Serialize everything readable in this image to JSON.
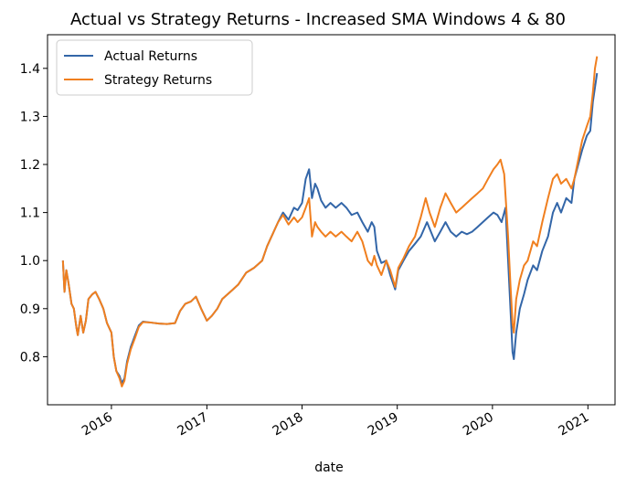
{
  "chart_data": {
    "type": "line",
    "title": "Actual vs Strategy Returns - Increased SMA Windows 4 & 80",
    "xlabel": "date",
    "ylabel": "",
    "x_range": [
      "2015-05-01",
      "2021-04-15"
    ],
    "ylim": [
      0.7,
      1.47
    ],
    "x_ticks": [
      {
        "date": "2016-01-01",
        "label": "2016"
      },
      {
        "date": "2017-01-01",
        "label": "2017"
      },
      {
        "date": "2018-01-01",
        "label": "2018"
      },
      {
        "date": "2019-01-01",
        "label": "2019"
      },
      {
        "date": "2020-01-01",
        "label": "2020"
      },
      {
        "date": "2021-01-01",
        "label": "2021"
      }
    ],
    "y_ticks": [
      {
        "value": 0.8,
        "label": "0.8"
      },
      {
        "value": 0.9,
        "label": "0.9"
      },
      {
        "value": 1.0,
        "label": "1.0"
      },
      {
        "value": 1.1,
        "label": "1.1"
      },
      {
        "value": 1.2,
        "label": "1.2"
      },
      {
        "value": 1.3,
        "label": "1.3"
      },
      {
        "value": 1.4,
        "label": "1.4"
      }
    ],
    "grid": false,
    "legend_position": "upper-left",
    "series": [
      {
        "name": "Actual Returns",
        "color": "#3366a8",
        "points": [
          [
            "2015-06-29",
            1.0
          ],
          [
            "2015-07-05",
            0.935
          ],
          [
            "2015-07-12",
            0.98
          ],
          [
            "2015-07-20",
            0.955
          ],
          [
            "2015-08-01",
            0.91
          ],
          [
            "2015-08-10",
            0.9
          ],
          [
            "2015-08-20",
            0.86
          ],
          [
            "2015-08-25",
            0.845
          ],
          [
            "2015-09-05",
            0.885
          ],
          [
            "2015-09-15",
            0.85
          ],
          [
            "2015-09-25",
            0.875
          ],
          [
            "2015-10-05",
            0.92
          ],
          [
            "2015-10-20",
            0.93
          ],
          [
            "2015-11-01",
            0.935
          ],
          [
            "2015-11-15",
            0.92
          ],
          [
            "2015-12-01",
            0.9
          ],
          [
            "2015-12-15",
            0.87
          ],
          [
            "2016-01-01",
            0.85
          ],
          [
            "2016-01-10",
            0.8
          ],
          [
            "2016-01-20",
            0.77
          ],
          [
            "2016-02-01",
            0.76
          ],
          [
            "2016-02-10",
            0.745
          ],
          [
            "2016-02-20",
            0.755
          ],
          [
            "2016-03-01",
            0.79
          ],
          [
            "2016-03-15",
            0.82
          ],
          [
            "2016-04-01",
            0.845
          ],
          [
            "2016-04-15",
            0.865
          ],
          [
            "2016-05-01",
            0.873
          ],
          [
            "2016-06-01",
            0.871
          ],
          [
            "2016-07-01",
            0.869
          ],
          [
            "2016-08-01",
            0.868
          ],
          [
            "2016-09-01",
            0.87
          ],
          [
            "2016-09-20",
            0.895
          ],
          [
            "2016-10-10",
            0.91
          ],
          [
            "2016-11-01",
            0.915
          ],
          [
            "2016-11-20",
            0.925
          ],
          [
            "2016-12-10",
            0.9
          ],
          [
            "2017-01-01",
            0.875
          ],
          [
            "2017-01-20",
            0.885
          ],
          [
            "2017-02-10",
            0.9
          ],
          [
            "2017-03-01",
            0.92
          ],
          [
            "2017-04-01",
            0.935
          ],
          [
            "2017-05-01",
            0.95
          ],
          [
            "2017-06-01",
            0.975
          ],
          [
            "2017-07-01",
            0.985
          ],
          [
            "2017-08-01",
            1.0
          ],
          [
            "2017-08-20",
            1.03
          ],
          [
            "2017-09-10",
            1.055
          ],
          [
            "2017-10-01",
            1.08
          ],
          [
            "2017-10-20",
            1.1
          ],
          [
            "2017-11-10",
            1.085
          ],
          [
            "2017-12-01",
            1.11
          ],
          [
            "2017-12-15",
            1.105
          ],
          [
            "2018-01-01",
            1.12
          ],
          [
            "2018-01-15",
            1.17
          ],
          [
            "2018-01-28",
            1.19
          ],
          [
            "2018-02-08",
            1.13
          ],
          [
            "2018-02-20",
            1.16
          ],
          [
            "2018-03-01",
            1.15
          ],
          [
            "2018-03-15",
            1.125
          ],
          [
            "2018-04-01",
            1.11
          ],
          [
            "2018-04-20",
            1.12
          ],
          [
            "2018-05-10",
            1.11
          ],
          [
            "2018-06-01",
            1.12
          ],
          [
            "2018-06-20",
            1.11
          ],
          [
            "2018-07-10",
            1.095
          ],
          [
            "2018-08-01",
            1.1
          ],
          [
            "2018-08-20",
            1.08
          ],
          [
            "2018-09-10",
            1.06
          ],
          [
            "2018-09-25",
            1.08
          ],
          [
            "2018-10-05",
            1.07
          ],
          [
            "2018-10-15",
            1.02
          ],
          [
            "2018-11-01",
            0.995
          ],
          [
            "2018-11-20",
            1.0
          ],
          [
            "2018-12-05",
            0.97
          ],
          [
            "2018-12-24",
            0.94
          ],
          [
            "2019-01-05",
            0.98
          ],
          [
            "2019-01-25",
            1.0
          ],
          [
            "2019-02-15",
            1.02
          ],
          [
            "2019-03-10",
            1.035
          ],
          [
            "2019-04-01",
            1.05
          ],
          [
            "2019-04-25",
            1.08
          ],
          [
            "2019-05-10",
            1.06
          ],
          [
            "2019-05-25",
            1.04
          ],
          [
            "2019-06-15",
            1.06
          ],
          [
            "2019-07-05",
            1.08
          ],
          [
            "2019-07-25",
            1.06
          ],
          [
            "2019-08-15",
            1.05
          ],
          [
            "2019-09-05",
            1.06
          ],
          [
            "2019-09-25",
            1.055
          ],
          [
            "2019-10-15",
            1.06
          ],
          [
            "2019-11-05",
            1.07
          ],
          [
            "2019-11-25",
            1.08
          ],
          [
            "2019-12-15",
            1.09
          ],
          [
            "2020-01-05",
            1.1
          ],
          [
            "2020-01-20",
            1.095
          ],
          [
            "2020-02-05",
            1.08
          ],
          [
            "2020-02-20",
            1.11
          ],
          [
            "2020-03-01",
            1.0
          ],
          [
            "2020-03-10",
            0.9
          ],
          [
            "2020-03-18",
            0.81
          ],
          [
            "2020-03-23",
            0.795
          ],
          [
            "2020-04-01",
            0.85
          ],
          [
            "2020-04-15",
            0.9
          ],
          [
            "2020-05-01",
            0.93
          ],
          [
            "2020-05-15",
            0.96
          ],
          [
            "2020-06-05",
            0.99
          ],
          [
            "2020-06-20",
            0.98
          ],
          [
            "2020-07-10",
            1.02
          ],
          [
            "2020-08-01",
            1.05
          ],
          [
            "2020-08-20",
            1.1
          ],
          [
            "2020-09-05",
            1.12
          ],
          [
            "2020-09-20",
            1.1
          ],
          [
            "2020-10-10",
            1.13
          ],
          [
            "2020-10-30",
            1.12
          ],
          [
            "2020-11-10",
            1.17
          ],
          [
            "2020-11-25",
            1.2
          ],
          [
            "2020-12-10",
            1.23
          ],
          [
            "2020-12-28",
            1.26
          ],
          [
            "2021-01-10",
            1.27
          ],
          [
            "2021-01-20",
            1.33
          ],
          [
            "2021-01-28",
            1.36
          ],
          [
            "2021-02-05",
            1.39
          ]
        ]
      },
      {
        "name": "Strategy Returns",
        "color": "#f07f1f",
        "points": [
          [
            "2015-06-29",
            1.0
          ],
          [
            "2015-07-05",
            0.935
          ],
          [
            "2015-07-12",
            0.98
          ],
          [
            "2015-07-20",
            0.955
          ],
          [
            "2015-08-01",
            0.91
          ],
          [
            "2015-08-10",
            0.9
          ],
          [
            "2015-08-20",
            0.86
          ],
          [
            "2015-08-25",
            0.845
          ],
          [
            "2015-09-05",
            0.885
          ],
          [
            "2015-09-15",
            0.85
          ],
          [
            "2015-09-25",
            0.875
          ],
          [
            "2015-10-05",
            0.92
          ],
          [
            "2015-10-20",
            0.93
          ],
          [
            "2015-11-01",
            0.935
          ],
          [
            "2015-11-15",
            0.92
          ],
          [
            "2015-12-01",
            0.9
          ],
          [
            "2015-12-15",
            0.87
          ],
          [
            "2016-01-01",
            0.85
          ],
          [
            "2016-01-10",
            0.8
          ],
          [
            "2016-01-20",
            0.77
          ],
          [
            "2016-02-01",
            0.755
          ],
          [
            "2016-02-10",
            0.738
          ],
          [
            "2016-02-20",
            0.75
          ],
          [
            "2016-03-01",
            0.785
          ],
          [
            "2016-03-15",
            0.815
          ],
          [
            "2016-04-01",
            0.84
          ],
          [
            "2016-04-15",
            0.862
          ],
          [
            "2016-05-01",
            0.872
          ],
          [
            "2016-06-01",
            0.871
          ],
          [
            "2016-07-01",
            0.869
          ],
          [
            "2016-08-01",
            0.868
          ],
          [
            "2016-09-01",
            0.87
          ],
          [
            "2016-09-20",
            0.895
          ],
          [
            "2016-10-10",
            0.91
          ],
          [
            "2016-11-01",
            0.915
          ],
          [
            "2016-11-20",
            0.925
          ],
          [
            "2016-12-10",
            0.9
          ],
          [
            "2017-01-01",
            0.875
          ],
          [
            "2017-01-20",
            0.885
          ],
          [
            "2017-02-10",
            0.9
          ],
          [
            "2017-03-01",
            0.92
          ],
          [
            "2017-04-01",
            0.935
          ],
          [
            "2017-05-01",
            0.95
          ],
          [
            "2017-06-01",
            0.975
          ],
          [
            "2017-07-01",
            0.985
          ],
          [
            "2017-08-01",
            1.0
          ],
          [
            "2017-08-20",
            1.03
          ],
          [
            "2017-09-10",
            1.055
          ],
          [
            "2017-10-01",
            1.08
          ],
          [
            "2017-10-20",
            1.095
          ],
          [
            "2017-11-10",
            1.075
          ],
          [
            "2017-12-01",
            1.09
          ],
          [
            "2017-12-15",
            1.08
          ],
          [
            "2018-01-01",
            1.09
          ],
          [
            "2018-01-15",
            1.11
          ],
          [
            "2018-01-28",
            1.13
          ],
          [
            "2018-02-08",
            1.05
          ],
          [
            "2018-02-20",
            1.08
          ],
          [
            "2018-03-01",
            1.07
          ],
          [
            "2018-03-15",
            1.06
          ],
          [
            "2018-04-01",
            1.05
          ],
          [
            "2018-04-20",
            1.06
          ],
          [
            "2018-05-10",
            1.05
          ],
          [
            "2018-06-01",
            1.06
          ],
          [
            "2018-06-20",
            1.05
          ],
          [
            "2018-07-10",
            1.04
          ],
          [
            "2018-08-01",
            1.06
          ],
          [
            "2018-08-20",
            1.04
          ],
          [
            "2018-09-10",
            1.0
          ],
          [
            "2018-09-25",
            0.99
          ],
          [
            "2018-10-05",
            1.01
          ],
          [
            "2018-10-15",
            0.99
          ],
          [
            "2018-11-01",
            0.97
          ],
          [
            "2018-11-20",
            1.0
          ],
          [
            "2018-12-05",
            0.98
          ],
          [
            "2018-12-24",
            0.945
          ],
          [
            "2019-01-05",
            0.985
          ],
          [
            "2019-01-25",
            1.005
          ],
          [
            "2019-02-15",
            1.03
          ],
          [
            "2019-03-10",
            1.05
          ],
          [
            "2019-04-01",
            1.09
          ],
          [
            "2019-04-20",
            1.13
          ],
          [
            "2019-05-05",
            1.1
          ],
          [
            "2019-05-25",
            1.07
          ],
          [
            "2019-06-15",
            1.11
          ],
          [
            "2019-07-05",
            1.14
          ],
          [
            "2019-07-25",
            1.12
          ],
          [
            "2019-08-15",
            1.1
          ],
          [
            "2019-09-05",
            1.11
          ],
          [
            "2019-09-25",
            1.12
          ],
          [
            "2019-10-15",
            1.13
          ],
          [
            "2019-11-05",
            1.14
          ],
          [
            "2019-11-25",
            1.15
          ],
          [
            "2019-12-15",
            1.17
          ],
          [
            "2020-01-05",
            1.19
          ],
          [
            "2020-01-20",
            1.2
          ],
          [
            "2020-02-01",
            1.21
          ],
          [
            "2020-02-15",
            1.18
          ],
          [
            "2020-03-01",
            1.05
          ],
          [
            "2020-03-10",
            0.95
          ],
          [
            "2020-03-18",
            0.87
          ],
          [
            "2020-03-23",
            0.85
          ],
          [
            "2020-04-01",
            0.92
          ],
          [
            "2020-04-15",
            0.96
          ],
          [
            "2020-05-01",
            0.99
          ],
          [
            "2020-05-15",
            1.0
          ],
          [
            "2020-06-05",
            1.04
          ],
          [
            "2020-06-20",
            1.03
          ],
          [
            "2020-07-10",
            1.08
          ],
          [
            "2020-08-01",
            1.13
          ],
          [
            "2020-08-20",
            1.17
          ],
          [
            "2020-09-05",
            1.18
          ],
          [
            "2020-09-20",
            1.16
          ],
          [
            "2020-10-10",
            1.17
          ],
          [
            "2020-10-30",
            1.15
          ],
          [
            "2020-11-10",
            1.17
          ],
          [
            "2020-11-25",
            1.21
          ],
          [
            "2020-12-10",
            1.25
          ],
          [
            "2020-12-28",
            1.28
          ],
          [
            "2021-01-10",
            1.3
          ],
          [
            "2021-01-20",
            1.35
          ],
          [
            "2021-01-28",
            1.4
          ],
          [
            "2021-02-05",
            1.425
          ]
        ]
      }
    ]
  }
}
